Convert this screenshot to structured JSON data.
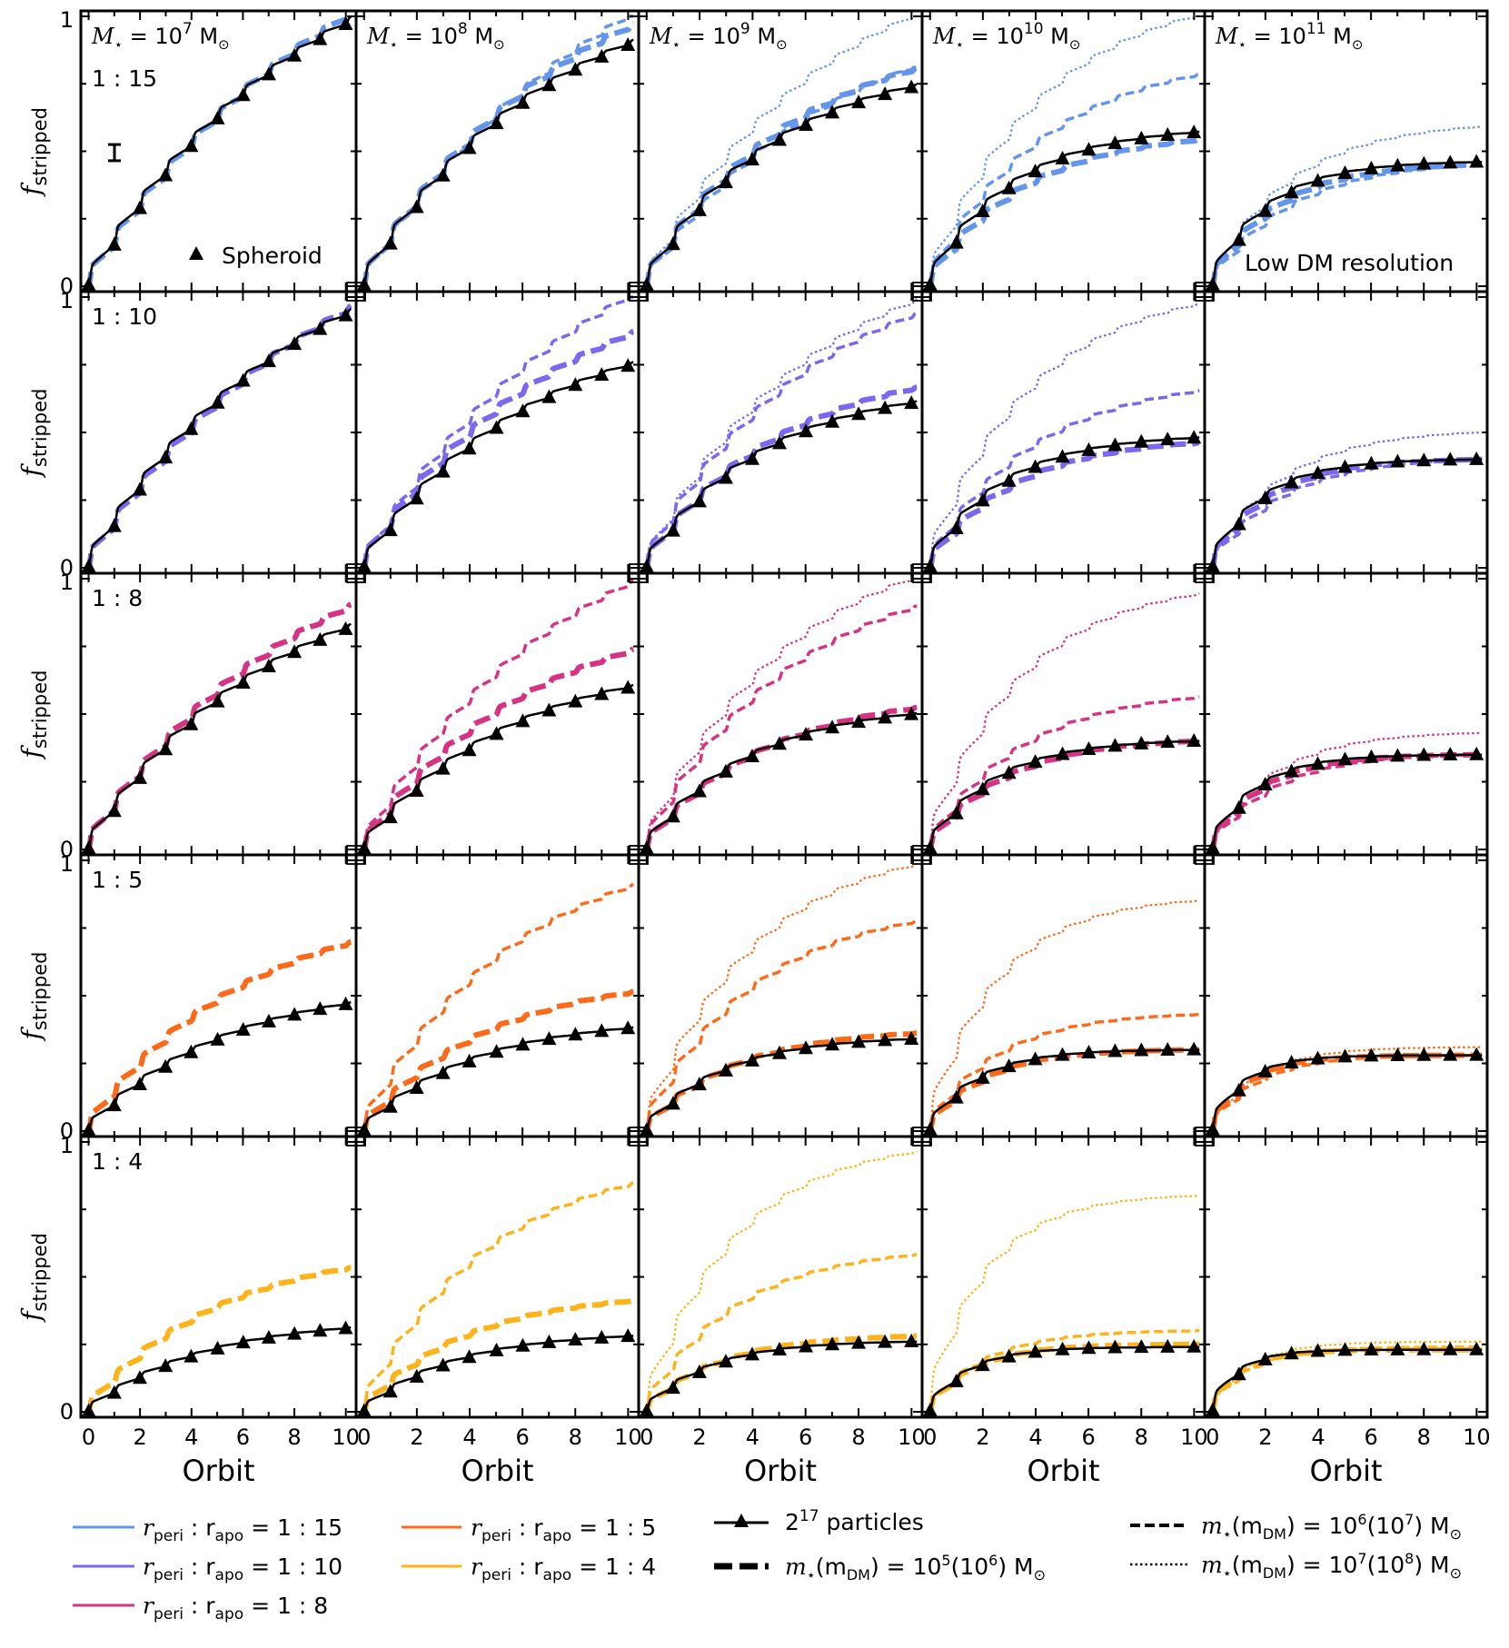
{
  "chart_data": {
    "type": "line",
    "layout": "grid 5 rows x 5 columns",
    "xlabel": "Orbit",
    "ylabel": "f",
    "ylabel_sub": "stripped",
    "x_ticks": [
      "0",
      "2",
      "4",
      "6",
      "8",
      "10"
    ],
    "y_ticks": [
      "0",
      "1"
    ],
    "xlim": [
      -0.3,
      10.4
    ],
    "ylim": [
      -0.02,
      1.02
    ],
    "columns": [
      {
        "prefix": "M",
        "sub": "⋆",
        "eq": " = 10",
        "exp": "7",
        "unit": " M",
        "unit_sub": "⊙"
      },
      {
        "prefix": "M",
        "sub": "⋆",
        "eq": " = 10",
        "exp": "8",
        "unit": " M",
        "unit_sub": "⊙"
      },
      {
        "prefix": "M",
        "sub": "⋆",
        "eq": " = 10",
        "exp": "9",
        "unit": " M",
        "unit_sub": "⊙"
      },
      {
        "prefix": "M",
        "sub": "⋆",
        "eq": " = 10",
        "exp": "10",
        "unit": " M",
        "unit_sub": "⊙"
      },
      {
        "prefix": "M",
        "sub": "⋆",
        "eq": " = 10",
        "exp": "11",
        "unit": " M",
        "unit_sub": "⊙"
      }
    ],
    "rows": [
      {
        "ratio": "1 : 15",
        "color": "#6495ED"
      },
      {
        "ratio": "1 : 10",
        "color": "#7B68EE"
      },
      {
        "ratio": "1 : 8",
        "color": "#D63384"
      },
      {
        "ratio": "1 : 5",
        "color": "#FF6A1A"
      },
      {
        "ratio": "1 : 4",
        "color": "#FFB31A"
      }
    ],
    "annotations": {
      "spheroid_label": "Spheroid",
      "low_res_label": "Low DM resolution",
      "error_bar_half_height": 0.03
    },
    "final_values": {
      "black_2e17": [
        [
          0.98,
          0.9,
          0.74,
          0.57,
          0.46
        ],
        [
          0.94,
          0.75,
          0.61,
          0.48,
          0.4
        ],
        [
          0.82,
          0.6,
          0.5,
          0.4,
          0.35
        ],
        [
          0.47,
          0.38,
          0.34,
          0.3,
          0.28
        ],
        [
          0.31,
          0.28,
          0.26,
          0.24,
          0.23
        ]
      ],
      "thick_dashed_1e5": [
        [
          1.0,
          0.96,
          0.8,
          0.54,
          0.45
        ],
        [
          0.95,
          0.86,
          0.66,
          0.46,
          0.4
        ],
        [
          0.89,
          0.73,
          0.52,
          0.4,
          0.35
        ],
        [
          0.69,
          0.51,
          0.36,
          0.3,
          0.28
        ],
        [
          0.53,
          0.41,
          0.28,
          0.25,
          0.23
        ]
      ],
      "dashed_1e6": [
        [
          null,
          1.0,
          0.81,
          0.78,
          0.45
        ],
        [
          null,
          1.0,
          0.93,
          0.65,
          0.4
        ],
        [
          null,
          0.98,
          0.89,
          0.56,
          0.35
        ],
        [
          null,
          0.9,
          0.77,
          0.43,
          0.28
        ],
        [
          null,
          0.84,
          0.58,
          0.3,
          0.24
        ]
      ],
      "dotted_1e7": [
        [
          null,
          null,
          1.0,
          1.0,
          0.59
        ],
        [
          null,
          null,
          0.98,
          0.97,
          0.5
        ],
        [
          null,
          null,
          1.0,
          0.94,
          0.43
        ],
        [
          null,
          null,
          0.98,
          0.85,
          0.31
        ],
        [
          null,
          null,
          0.96,
          0.8,
          0.26
        ]
      ]
    }
  },
  "legend": {
    "colors": [
      {
        "lhs": "r",
        "s1": "peri",
        "mid": " : r",
        "s2": "apo",
        "rhs": " = 1 : 15",
        "color": "#6495ED"
      },
      {
        "lhs": "r",
        "s1": "peri",
        "mid": " : r",
        "s2": "apo",
        "rhs": " = 1 : 10",
        "color": "#7B68EE"
      },
      {
        "lhs": "r",
        "s1": "peri",
        "mid": " : r",
        "s2": "apo",
        "rhs": " = 1 : 8",
        "color": "#D63384"
      },
      {
        "lhs": "r",
        "s1": "peri",
        "mid": " : r",
        "s2": "apo",
        "rhs": " = 1 : 5",
        "color": "#FF6A1A"
      },
      {
        "lhs": "r",
        "s1": "peri",
        "mid": " : r",
        "s2": "apo",
        "rhs": " = 1 : 4",
        "color": "#FFB31A"
      }
    ],
    "particles": {
      "base": "2",
      "exp": "17",
      "text": " particles"
    },
    "res_thick": {
      "m": "m",
      "ms": "⋆",
      "mid": "(m",
      "ds": "DM",
      "eq": ") = 10",
      "e1": "5",
      "p": "(10",
      "e2": "6",
      "u": ") M",
      "us": "⊙"
    },
    "res_dashed": {
      "m": "m",
      "ms": "⋆",
      "mid": "(m",
      "ds": "DM",
      "eq": ") = 10",
      "e1": "6",
      "p": "(10",
      "e2": "7",
      "u": ") M",
      "us": "⊙"
    },
    "res_dotted": {
      "m": "m",
      "ms": "⋆",
      "mid": "(m",
      "ds": "DM",
      "eq": ") = 10",
      "e1": "7",
      "p": "(10",
      "e2": "8",
      "u": ") M",
      "us": "⊙"
    }
  }
}
